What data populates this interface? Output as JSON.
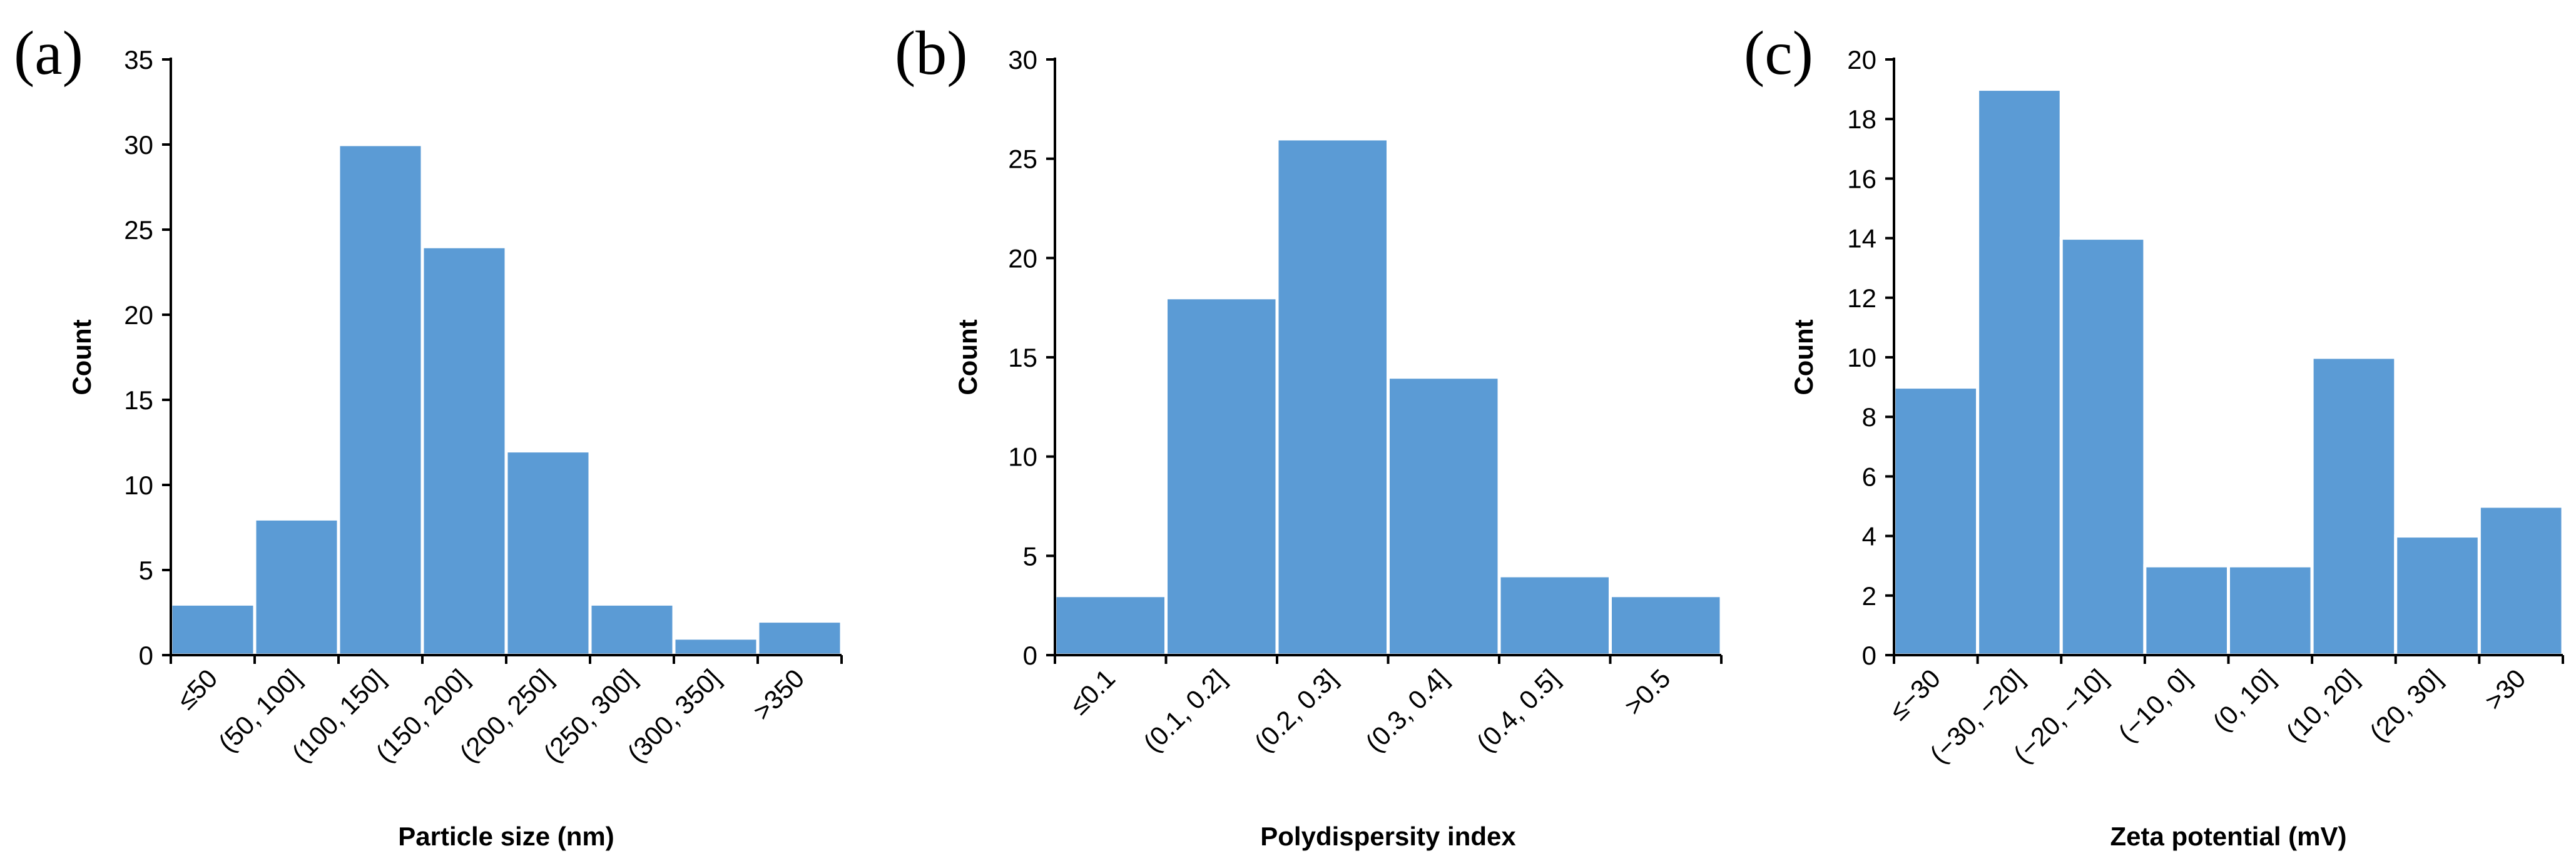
{
  "colors": {
    "bar_fill": "#5B9BD5",
    "axis": "#000000",
    "background": "#FFFFFF"
  },
  "chart_data": [
    {
      "type": "bar",
      "panel_label": "(a)",
      "xlabel": "Particle size (nm)",
      "ylabel": "Count",
      "categories": [
        "≤50",
        "(50, 100]",
        "(100, 150]",
        "(150, 200]",
        "(200, 250]",
        "(250, 300]",
        "(300, 350]",
        ">350"
      ],
      "values": [
        3,
        8,
        30,
        24,
        12,
        3,
        1,
        2
      ],
      "ylim": [
        0,
        35
      ],
      "yticks": [
        "0",
        "5",
        "10",
        "15",
        "20",
        "25",
        "30",
        "35"
      ],
      "grid": false,
      "legend": "none"
    },
    {
      "type": "bar",
      "panel_label": "(b)",
      "xlabel": "Polydispersity index",
      "ylabel": "Count",
      "categories": [
        "≤0.1",
        "(0.1, 0.2]",
        "(0.2, 0.3]",
        "(0.3, 0.4]",
        "(0.4, 0.5]",
        ">0.5"
      ],
      "values": [
        3,
        18,
        26,
        14,
        4,
        3
      ],
      "ylim": [
        0,
        30
      ],
      "yticks": [
        "0",
        "5",
        "10",
        "15",
        "20",
        "25",
        "30"
      ],
      "grid": false,
      "legend": "none"
    },
    {
      "type": "bar",
      "panel_label": "(c)",
      "xlabel": "Zeta potential (mV)",
      "ylabel": "Count",
      "categories": [
        "≤−30",
        "(−30, −20]",
        "(−20, −10]",
        "(−10, 0]",
        "(0, 10]",
        "(10, 20]",
        "(20, 30]",
        ">30"
      ],
      "values": [
        9,
        19,
        14,
        3,
        3,
        10,
        4,
        5
      ],
      "ylim": [
        0,
        20
      ],
      "yticks": [
        "0",
        "2",
        "4",
        "6",
        "8",
        "10",
        "12",
        "14",
        "16",
        "18",
        "20"
      ],
      "grid": false,
      "legend": "none"
    }
  ]
}
